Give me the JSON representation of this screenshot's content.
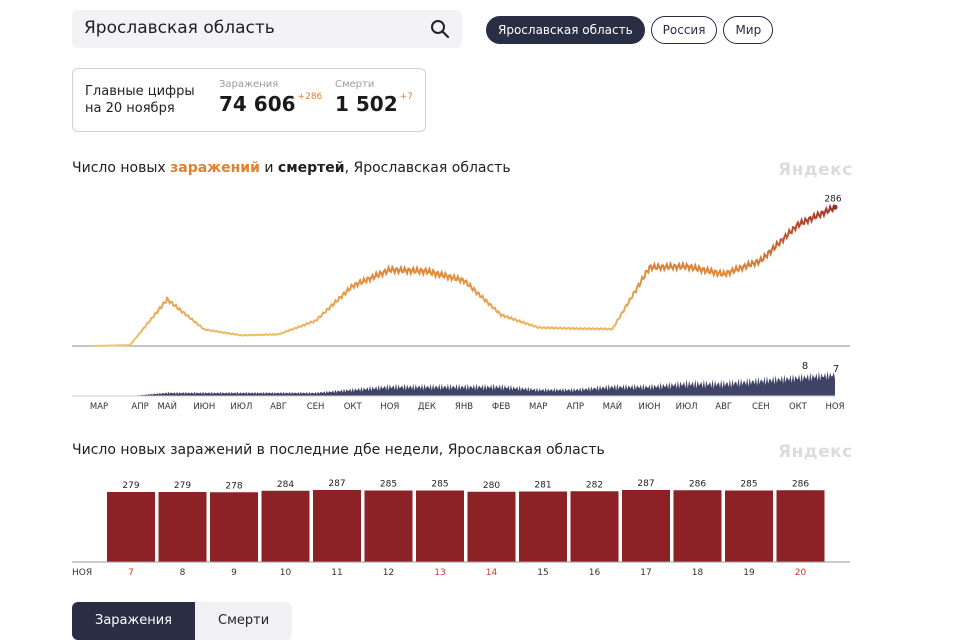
{
  "search": {
    "value": "Ярославская область"
  },
  "region_tabs": [
    {
      "label": "Ярославская область",
      "active": true
    },
    {
      "label": "Россия",
      "active": false
    },
    {
      "label": "Мир",
      "active": false
    }
  ],
  "stats": {
    "title_line1": "Главные цифры",
    "title_line2": "на 20 ноября",
    "infections": {
      "label": "Заражения",
      "value": "74 606",
      "delta": "+286"
    },
    "deaths": {
      "label": "Смерти",
      "value": "1 502",
      "delta": "+7"
    }
  },
  "chart1": {
    "title_part1": "Число новых ",
    "title_highlight": "заражений",
    "title_part2": " и ",
    "title_bold": "смертей",
    "title_part3": ", Ярославская область",
    "watermark": "Яндекс",
    "end_label_infections": "286",
    "end_label_deaths": "7",
    "peak_label_deaths": "8"
  },
  "chart2": {
    "title": "Число новых заражений в последние дбе недели, Ярославская область",
    "watermark": "Яндекс",
    "month_label": "НОЯ"
  },
  "metric_tabs": [
    {
      "label": "Заражения",
      "active": true
    },
    {
      "label": "Смерти",
      "active": false
    }
  ],
  "colors": {
    "bar": "#8c2226",
    "deaths_area": "#3f4466",
    "line_low": "#f0c36e",
    "line_high": "#9b2a26",
    "accent": "#e0822e",
    "weekend_label": "#d2352d"
  },
  "chart_data": [
    {
      "type": "line",
      "description_series": "new infections (line) and new deaths (area) per day",
      "x_ticks": [
        "МАР",
        "АПР",
        "МАЙ",
        "ИЮН",
        "ИЮЛ",
        "АВГ",
        "СЕН",
        "ОКТ",
        "НОЯ",
        "ДЕК",
        "ЯНВ",
        "ФЕВ",
        "МАР",
        "АПР",
        "МАЙ",
        "ИЮН",
        "ИЮЛ",
        "АВГ",
        "СЕН",
        "ОКТ",
        "НОЯ"
      ],
      "series": [
        {
          "name": "Заражения",
          "x": [
            0,
            1,
            2,
            3,
            4,
            5,
            6,
            7,
            8,
            9,
            10,
            11,
            12,
            13,
            14,
            15,
            16,
            17,
            18,
            19,
            20
          ],
          "values": [
            0,
            2,
            96,
            34,
            22,
            24,
            52,
            124,
            157,
            154,
            135,
            64,
            38,
            36,
            35,
            162,
            164,
            148,
            176,
            250,
            286
          ]
        },
        {
          "name": "Смерти",
          "x": [
            0,
            1,
            2,
            3,
            4,
            5,
            6,
            7,
            8,
            9,
            10,
            11,
            12,
            13,
            14,
            15,
            16,
            17,
            18,
            19,
            20
          ],
          "values": [
            0,
            0,
            1,
            1,
            1,
            1,
            1,
            2,
            3,
            3,
            3,
            3,
            2,
            2,
            3,
            3,
            4,
            4,
            5,
            6,
            7
          ]
        }
      ],
      "end_values": {
        "Заражения": 286,
        "Смерти": 7
      },
      "annotations": [
        "286",
        "8",
        "7"
      ]
    },
    {
      "type": "bar",
      "categories": [
        "7",
        "8",
        "9",
        "10",
        "11",
        "12",
        "13",
        "14",
        "15",
        "16",
        "17",
        "18",
        "19",
        "20"
      ],
      "values": [
        279,
        279,
        278,
        284,
        287,
        285,
        285,
        280,
        281,
        282,
        287,
        286,
        285,
        286
      ],
      "weekend": [
        true,
        false,
        false,
        false,
        false,
        false,
        true,
        true,
        false,
        false,
        false,
        false,
        false,
        true
      ],
      "month_label": "НОЯ"
    }
  ]
}
